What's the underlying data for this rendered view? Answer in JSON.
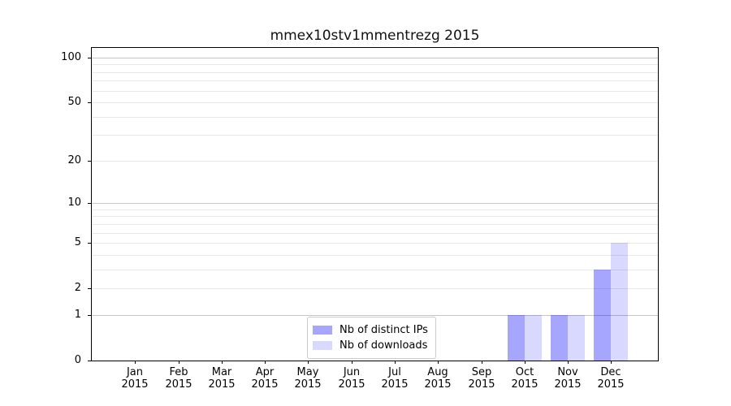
{
  "title": "mmex10stv1mmentrezg 2015",
  "chart_data": {
    "type": "bar",
    "title": "mmex10stv1mmentrezg 2015",
    "xlabel": "",
    "ylabel": "",
    "x_year": "2015",
    "categories": [
      "Jan",
      "Feb",
      "Mar",
      "Apr",
      "May",
      "Jun",
      "Jul",
      "Aug",
      "Sep",
      "Oct",
      "Nov",
      "Dec"
    ],
    "series": [
      {
        "name": "Nb of distinct IPs",
        "color": "#a6a6ff",
        "base_color": "#0000ff",
        "alpha": 0.35,
        "values": [
          0,
          0,
          0,
          0,
          0,
          0,
          0,
          0,
          0,
          1,
          1,
          3
        ]
      },
      {
        "name": "Nb of downloads",
        "color": "#d8d8ff",
        "base_color": "#0000ff",
        "alpha": 0.15,
        "values": [
          0,
          0,
          0,
          0,
          0,
          0,
          0,
          0,
          0,
          1,
          1,
          5
        ]
      }
    ],
    "y_scale": "log10(1+v)",
    "ylim": [
      0,
      116
    ],
    "y_tick_values": [
      0,
      1,
      2,
      5,
      10,
      20,
      50,
      100
    ],
    "y_tick_labels": [
      "0",
      "1",
      "2",
      "5",
      "10",
      "20",
      "50",
      "100"
    ],
    "y_major_grid_values": [
      1,
      10,
      100
    ],
    "y_minor_grid_values": [
      2,
      3,
      4,
      5,
      6,
      7,
      8,
      9,
      20,
      30,
      40,
      50,
      60,
      70,
      80,
      90
    ],
    "grid": "horizontal",
    "legend_position": "lower center",
    "colors": {
      "grid_major": "#c6c6c6",
      "grid_minor": "#e8e8e8",
      "spine": "#000000",
      "background": "#ffffff"
    }
  }
}
